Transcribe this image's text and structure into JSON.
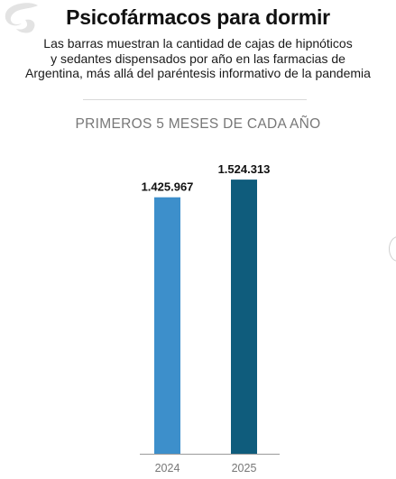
{
  "header": {
    "title": "Psicofármacos para dormir",
    "subtitle_lines": [
      "Las barras muestran la cantidad de cajas de hipnóticos",
      "y sedantes dispensados por año en las farmacias de",
      "Argentina, más allá del paréntesis informativo de la pandemia"
    ]
  },
  "colors": {
    "bar_2024": "#3d8fcb",
    "bar_2025": "#0f5c7c",
    "axis": "#9a9a9a",
    "logo": "#e3e3e3"
  },
  "chart_data": {
    "type": "bar",
    "title": "PRIMEROS 5 MESES DE CADA AÑO",
    "categories": [
      "2024",
      "2025"
    ],
    "values": [
      1425967,
      1524313
    ],
    "value_labels": [
      "1.425.967",
      "1.524.313"
    ],
    "xlabel": "",
    "ylabel": "",
    "ylim": [
      0,
      1580000
    ],
    "grid": false,
    "legend": "none"
  }
}
